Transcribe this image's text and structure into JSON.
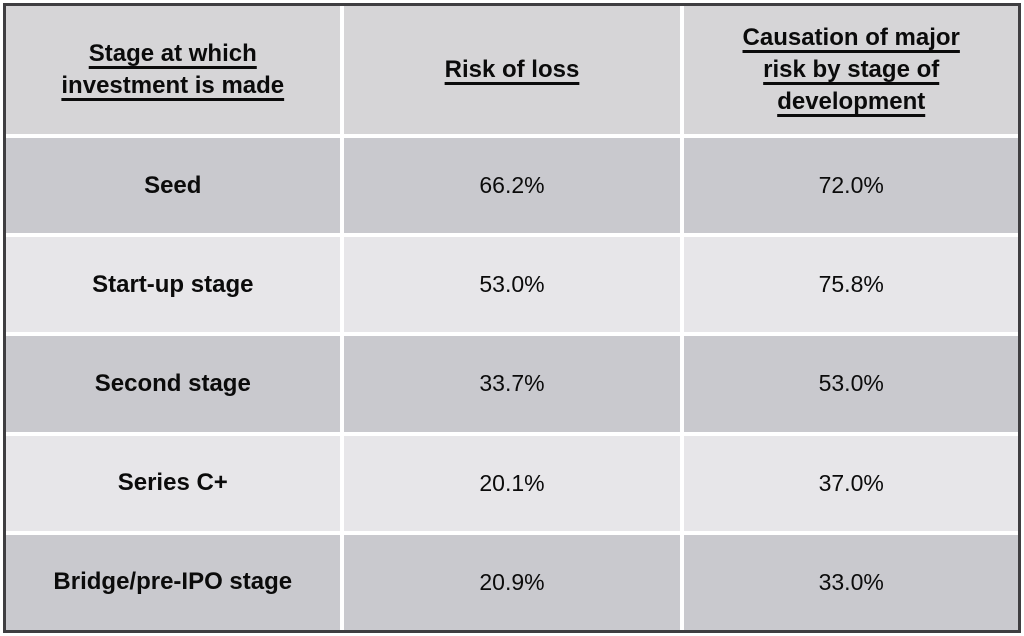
{
  "table": {
    "columns": [
      {
        "label": "Stage at which investment is made"
      },
      {
        "label": "Risk of loss"
      },
      {
        "label": "Causation of major risk by stage of development"
      }
    ],
    "rows": [
      {
        "stage": "Seed",
        "risk_of_loss": "66.2%",
        "causation": "72.0%"
      },
      {
        "stage": "Start-up stage",
        "risk_of_loss": "53.0%",
        "causation": "75.8%"
      },
      {
        "stage": "Second stage",
        "risk_of_loss": "33.7%",
        "causation": "53.0%"
      },
      {
        "stage": "Series C+",
        "risk_of_loss": "20.1%",
        "causation": "37.0%"
      },
      {
        "stage": "Bridge/pre-IPO stage",
        "risk_of_loss": "20.9%",
        "causation": "33.0%"
      }
    ]
  },
  "colors": {
    "header_bg": "#d6d5d7",
    "row_dark_bg": "#c9c9ce",
    "row_light_bg": "#e7e6e9",
    "separator": "#ffffff",
    "outer_border": "#3f3e41",
    "text": "#0b0b0b"
  },
  "chart_data": {
    "type": "table",
    "columns": [
      "Stage at which investment is made",
      "Risk of loss",
      "Causation of major risk by stage of development"
    ],
    "rows": [
      [
        "Seed",
        "66.2%",
        "72.0%"
      ],
      [
        "Start-up stage",
        "53.0%",
        "75.8%"
      ],
      [
        "Second stage",
        "33.7%",
        "53.0%"
      ],
      [
        "Series C+",
        "20.1%",
        "37.0%"
      ],
      [
        "Bridge/pre-IPO stage",
        "20.9%",
        "33.0%"
      ]
    ],
    "series": [
      {
        "name": "Risk of loss",
        "values": [
          66.2,
          53.0,
          33.7,
          20.1,
          20.9
        ]
      },
      {
        "name": "Causation of major risk by stage of development",
        "values": [
          72.0,
          75.8,
          53.0,
          37.0,
          33.0
        ]
      }
    ],
    "categories": [
      "Seed",
      "Start-up stage",
      "Second stage",
      "Series C+",
      "Bridge/pre-IPO stage"
    ],
    "units": "percent"
  }
}
